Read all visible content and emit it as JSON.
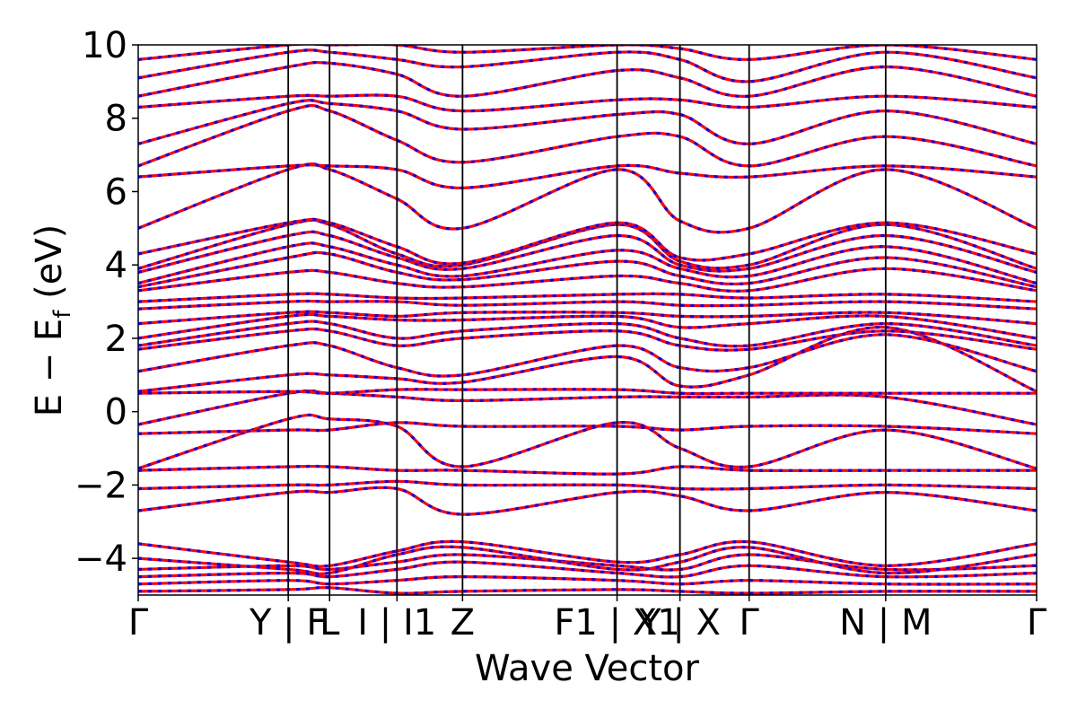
{
  "chart_data": {
    "type": "line",
    "title": "",
    "xlabel": "Wave Vector",
    "ylabel": "E − E",
    "ylabel_sub": "f",
    "ylabel_unit": " (eV)",
    "ylim": [
      -5,
      10
    ],
    "yticks": [
      -4,
      -2,
      0,
      2,
      4,
      6,
      8,
      10
    ],
    "ytick_labels": [
      "−4",
      "−2",
      "0",
      "2",
      "4",
      "6",
      "8",
      "10"
    ],
    "grid": false,
    "legend": "none",
    "colors": {
      "series_a": "#ff0000",
      "series_b": "#0000ff",
      "kpath_line": "#000000"
    },
    "kpath": [
      {
        "x": 0.0,
        "label": "Γ"
      },
      {
        "x": 0.167,
        "label": "Y | F"
      },
      {
        "x": 0.213,
        "label": "L"
      },
      {
        "x": 0.288,
        "label": "I | I1"
      },
      {
        "x": 0.361,
        "label": "Z"
      },
      {
        "x": 0.533,
        "label": "F1 | X1"
      },
      {
        "x": 0.603,
        "label": "Y | X"
      },
      {
        "x": 0.68,
        "label": "Γ"
      },
      {
        "x": 0.832,
        "label": "N | M"
      },
      {
        "x": 1.0,
        "label": "Γ"
      }
    ],
    "series_names": [
      "",
      ""
    ],
    "bands": [
      [
        -4.9,
        -4.85,
        -4.8,
        -4.95,
        -4.9,
        -4.85,
        -4.9,
        -4.95,
        -4.9,
        -4.9
      ],
      [
        -4.7,
        -4.6,
        -4.7,
        -4.6,
        -4.5,
        -4.6,
        -4.7,
        -4.6,
        -4.7,
        -4.7
      ],
      [
        -4.5,
        -4.4,
        -4.5,
        -4.3,
        -4.1,
        -4.4,
        -4.5,
        -4.2,
        -4.5,
        -4.4
      ],
      [
        -4.3,
        -4.2,
        -4.3,
        -4.1,
        -3.9,
        -4.2,
        -4.3,
        -3.9,
        -4.3,
        -4.2
      ],
      [
        -4.0,
        -4.3,
        -4.4,
        -3.9,
        -3.7,
        -4.3,
        -4.1,
        -3.7,
        -4.4,
        -3.9
      ],
      [
        -3.6,
        -4.1,
        -4.2,
        -3.8,
        -3.55,
        -4.1,
        -3.9,
        -3.55,
        -4.2,
        -3.6
      ],
      [
        -2.7,
        -2.2,
        -2.2,
        -2.1,
        -2.8,
        -2.2,
        -2.3,
        -2.7,
        -2.2,
        -2.7
      ],
      [
        -2.1,
        -2.0,
        -2.0,
        -1.9,
        -2.0,
        -2.0,
        -2.1,
        -2.1,
        -2.0,
        -2.1
      ],
      [
        -1.6,
        -1.5,
        -1.5,
        -1.6,
        -1.6,
        -1.7,
        -1.5,
        -1.6,
        -1.6,
        -1.6
      ],
      [
        -1.55,
        -0.2,
        -0.2,
        -0.4,
        -1.5,
        -0.3,
        -1.0,
        -1.5,
        -0.5,
        -1.55
      ],
      [
        -0.6,
        -0.5,
        -0.5,
        -0.3,
        -0.4,
        -0.4,
        -0.5,
        -0.4,
        -0.4,
        -0.6
      ],
      [
        -0.35,
        0.5,
        0.5,
        0.4,
        0.3,
        0.4,
        0.4,
        0.4,
        0.4,
        -0.35
      ],
      [
        0.5,
        0.55,
        0.5,
        0.6,
        0.6,
        0.6,
        0.5,
        0.5,
        0.5,
        0.5
      ],
      [
        0.55,
        1.0,
        1.0,
        0.9,
        0.8,
        1.5,
        0.7,
        1.0,
        2.3,
        0.55
      ],
      [
        1.1,
        1.8,
        1.8,
        1.2,
        1.0,
        1.8,
        1.2,
        1.2,
        2.1,
        1.1
      ],
      [
        1.7,
        2.2,
        2.2,
        1.8,
        2.0,
        2.2,
        1.8,
        1.7,
        2.2,
        1.7
      ],
      [
        1.8,
        2.4,
        2.4,
        2.0,
        2.2,
        2.4,
        2.0,
        1.8,
        2.4,
        1.8
      ],
      [
        2.0,
        2.6,
        2.6,
        2.5,
        2.5,
        2.6,
        2.3,
        2.4,
        2.6,
        2.0
      ],
      [
        2.4,
        2.7,
        2.7,
        2.6,
        2.7,
        2.7,
        2.6,
        2.6,
        2.7,
        2.4
      ],
      [
        2.8,
        3.0,
        3.0,
        3.0,
        2.9,
        3.0,
        2.9,
        2.9,
        3.0,
        2.8
      ],
      [
        3.0,
        3.2,
        3.2,
        3.1,
        3.1,
        3.2,
        3.2,
        3.1,
        3.2,
        3.0
      ],
      [
        3.3,
        3.8,
        3.8,
        3.5,
        3.4,
        3.7,
        3.5,
        3.3,
        3.9,
        3.3
      ],
      [
        3.4,
        4.2,
        4.3,
        3.8,
        3.6,
        4.1,
        3.7,
        3.5,
        4.2,
        3.4
      ],
      [
        3.5,
        4.5,
        4.5,
        4.0,
        3.7,
        4.4,
        3.9,
        3.7,
        4.5,
        3.5
      ],
      [
        3.8,
        4.8,
        4.8,
        4.2,
        3.9,
        4.8,
        4.0,
        3.9,
        4.8,
        3.8
      ],
      [
        3.9,
        5.1,
        5.1,
        4.3,
        4.0,
        5.1,
        4.1,
        4.0,
        5.1,
        3.9
      ],
      [
        4.3,
        5.15,
        5.15,
        4.5,
        4.05,
        5.15,
        4.2,
        4.3,
        5.15,
        4.3
      ],
      [
        5.0,
        6.6,
        6.6,
        5.8,
        5.0,
        6.6,
        5.2,
        5.0,
        6.6,
        5.0
      ],
      [
        6.4,
        6.7,
        6.7,
        6.6,
        6.1,
        6.7,
        6.5,
        6.4,
        6.7,
        6.4
      ],
      [
        6.7,
        8.2,
        8.2,
        7.4,
        6.8,
        7.5,
        7.5,
        6.7,
        7.5,
        6.7
      ],
      [
        7.3,
        8.4,
        8.4,
        8.2,
        7.7,
        8.1,
        8.1,
        7.3,
        8.2,
        7.3
      ],
      [
        8.3,
        8.6,
        8.6,
        8.6,
        8.2,
        8.5,
        8.5,
        8.3,
        8.6,
        8.3
      ],
      [
        8.6,
        9.4,
        9.5,
        9.2,
        8.6,
        9.3,
        9.1,
        8.6,
        9.4,
        8.6
      ],
      [
        9.1,
        9.8,
        9.8,
        9.6,
        9.4,
        9.8,
        9.6,
        9.0,
        9.8,
        9.1
      ],
      [
        9.6,
        10.0,
        10.0,
        10.0,
        9.8,
        10.0,
        9.9,
        9.6,
        10.0,
        9.6
      ]
    ]
  }
}
